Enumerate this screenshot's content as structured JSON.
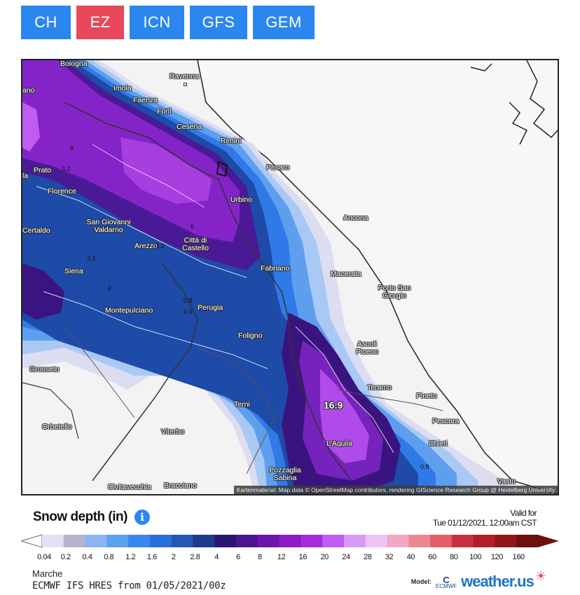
{
  "tabs": [
    {
      "label": "CH",
      "active": false
    },
    {
      "label": "EZ",
      "active": true
    },
    {
      "label": "ICN",
      "active": false
    },
    {
      "label": "GFS",
      "active": false
    },
    {
      "label": "GEM",
      "active": false
    }
  ],
  "map": {
    "cities": {
      "bologna": "Bologna",
      "ravenna": "Ravenna",
      "imola": "Imola",
      "faenza": "Faenza",
      "forli": "Forlì",
      "cesena": "Cesena",
      "rimini": "Rimini",
      "pesaro": "Pesaro",
      "prato": "Prato",
      "florence": "Florence",
      "urbino": "Urbino",
      "ancona": "Ancona",
      "certaldo": "Certaldo",
      "sgv": "San Giovanni Valdarno",
      "arezzo": "Arezzo",
      "citta": "Città di Castello",
      "siena": "Siena",
      "fabriano": "Fabriano",
      "macerata": "Macerata",
      "porto": "Porto San Giorgio",
      "montepulciano": "Montepulciano",
      "perugia": "Perugia",
      "foligno": "Foligno",
      "ascoli": "Ascoli Piceno",
      "grosseto": "Grosseto",
      "teramo": "Teramo",
      "pineto": "Pineto",
      "terni": "Terni",
      "pescara": "Pescara",
      "orbetello": "Orbetello",
      "viterbo": "Viterbo",
      "laquila": "L'Aquila",
      "chieti": "Chieti",
      "pozzaglia": "Pozzaglia Sabina",
      "civitavecchia": "Civitavecchia",
      "bracciano": "Bracciano",
      "vasto": "Vasto",
      "ano": "ano",
      "la": "la"
    },
    "contour_labels": [
      "8",
      "3.2",
      "3.2",
      "6",
      "3.2",
      "2",
      "0.8",
      "0.4",
      "0.8"
    ],
    "max_value": "16.9",
    "attribution": "Kartenmaterial: Map data © OpenStreetMap contributors, rendering GIScience Research Group @ Heidelberg University"
  },
  "legend": {
    "title": "Snow depth (in)",
    "valid_line1": "Valid for",
    "valid_line2": "Tue 01/12/2021, 12:00am CST",
    "labels": [
      "0.04",
      "0.2",
      "0.4",
      "0.8",
      "1.2",
      "1.6",
      "2",
      "2.8",
      "4",
      "6",
      "8",
      "12",
      "16",
      "20",
      "24",
      "28",
      "32",
      "40",
      "60",
      "80",
      "100",
      "120",
      "160"
    ],
    "colors": [
      "#e2e2f4",
      "#b4b4cc",
      "#8cb4f0",
      "#5ca0f0",
      "#3a86ee",
      "#2a70dc",
      "#2456b4",
      "#1e3c8c",
      "#2a1670",
      "#4a1690",
      "#6a16a8",
      "#8c1cc4",
      "#a82ae0",
      "#c05cf0",
      "#d898f4",
      "#ecc4f8",
      "#f0a8c4",
      "#ec8890",
      "#e45e68",
      "#cc3040",
      "#b01e26",
      "#901818",
      "#6c1010"
    ]
  },
  "footer": {
    "region": "Marche",
    "model": "ECMWF IFS HRES from 01/05/2021/00z",
    "model_label": "Model:",
    "ecmwf": "ECMWF",
    "brand": "weather.us"
  }
}
